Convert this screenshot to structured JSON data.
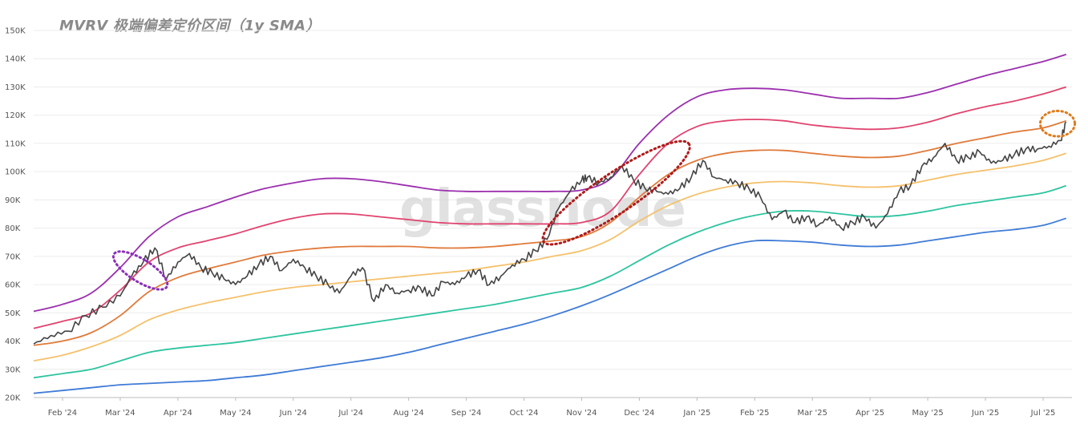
{
  "chart_data": {
    "type": "line",
    "title": "MVRV 极端偏差定价区间（1y SMA）",
    "watermark": "glassnode",
    "xlabel": "",
    "ylabel": "",
    "ylim": [
      20000,
      150000
    ],
    "y_ticks": [
      20000,
      30000,
      40000,
      50000,
      60000,
      70000,
      80000,
      90000,
      100000,
      110000,
      120000,
      130000,
      140000,
      150000
    ],
    "y_tick_labels": [
      "20K",
      "30K",
      "40K",
      "50K",
      "60K",
      "70K",
      "80K",
      "90K",
      "100K",
      "110K",
      "120K",
      "130K",
      "140K",
      "150K"
    ],
    "x_tick_labels": [
      "Feb '24",
      "Mar '24",
      "Apr '24",
      "May '24",
      "Jun '24",
      "Jul '24",
      "Aug '24",
      "Sep '24",
      "Oct '24",
      "Nov '24",
      "Dec '24",
      "Jan '25",
      "Feb '25",
      "Mar '25",
      "Apr '25",
      "May '25",
      "Jun '25",
      "Jul '25"
    ],
    "x_tick_positions": [
      0.5,
      1.5,
      2.5,
      3.5,
      4.5,
      5.5,
      6.5,
      7.5,
      8.5,
      9.5,
      10.5,
      11.5,
      12.5,
      13.5,
      14.5,
      15.5,
      16.5,
      17.5
    ],
    "grid": true,
    "x": [
      0,
      0.5,
      1,
      1.5,
      2,
      2.5,
      3,
      3.5,
      4,
      4.5,
      5,
      5.5,
      6,
      6.5,
      7,
      7.5,
      8,
      8.5,
      9,
      9.5,
      10,
      10.5,
      11,
      11.5,
      12,
      12.5,
      13,
      13.5,
      14,
      14.5,
      15,
      15.5,
      16,
      16.5,
      17,
      17.5,
      17.9
    ],
    "series": [
      {
        "color": "#9b2fae",
        "values": [
          50500,
          53000,
          57000,
          66000,
          77000,
          84000,
          87500,
          91000,
          94000,
          96000,
          97500,
          97500,
          96500,
          95000,
          93500,
          93000,
          93000,
          93000,
          93000,
          93500,
          97500,
          110000,
          120000,
          126500,
          129000,
          129500,
          129000,
          127500,
          126000,
          126000,
          126000,
          128000,
          131000,
          134000,
          136500,
          139000,
          141500
        ]
      },
      {
        "color": "#e0436e",
        "values": [
          44500,
          47000,
          50000,
          58000,
          68000,
          73000,
          75500,
          78000,
          81000,
          83500,
          85000,
          85000,
          84000,
          83000,
          82000,
          81500,
          81500,
          81500,
          81500,
          82000,
          86000,
          99000,
          110000,
          116000,
          118000,
          118500,
          118000,
          116500,
          115500,
          115000,
          115500,
          117500,
          120500,
          123000,
          125000,
          127500,
          130000
        ]
      },
      {
        "color": "#e07a3a",
        "values": [
          38500,
          40000,
          43000,
          49000,
          57500,
          62500,
          65500,
          68000,
          70500,
          72000,
          73000,
          73500,
          73500,
          73500,
          73000,
          73000,
          73500,
          74500,
          75500,
          77000,
          82000,
          91000,
          99000,
          104000,
          106500,
          107500,
          107500,
          106500,
          105500,
          105000,
          105500,
          107500,
          110000,
          112000,
          114000,
          115500,
          118000
        ]
      },
      {
        "color": "#f5c16c",
        "values": [
          33000,
          35000,
          38000,
          42000,
          47500,
          51000,
          53500,
          55500,
          57500,
          59000,
          60000,
          61000,
          62000,
          63000,
          64000,
          65000,
          66500,
          68000,
          70000,
          72000,
          76000,
          82500,
          88000,
          92000,
          94500,
          96000,
          96500,
          96000,
          95000,
          94500,
          95000,
          97000,
          99000,
          100500,
          102000,
          104000,
          106500
        ]
      },
      {
        "color": "#2ec4a0",
        "values": [
          27000,
          28500,
          30000,
          33000,
          36000,
          37500,
          38500,
          39500,
          41000,
          42500,
          44000,
          45500,
          47000,
          48500,
          50000,
          51500,
          53000,
          55000,
          57000,
          59000,
          63000,
          68500,
          74000,
          78500,
          82000,
          84500,
          86000,
          86000,
          85000,
          84000,
          84500,
          86000,
          88000,
          89500,
          91000,
          92500,
          95000
        ]
      },
      {
        "color": "#3f7bd6",
        "values": [
          21500,
          22500,
          23500,
          24500,
          25000,
          25500,
          26000,
          27000,
          28000,
          29500,
          31000,
          32500,
          34000,
          36000,
          38500,
          41000,
          43500,
          46000,
          49000,
          52500,
          56500,
          61000,
          65500,
          70000,
          73500,
          75500,
          75500,
          75000,
          74000,
          73500,
          74000,
          75500,
          77000,
          78500,
          79500,
          81000,
          83500
        ]
      },
      {
        "color": "#444444",
        "x": [
          0,
          0.3,
          0.6,
          0.9,
          1.2,
          1.5,
          1.7,
          1.9,
          2.1,
          2.3,
          2.5,
          2.7,
          2.9,
          3.1,
          3.3,
          3.5,
          3.7,
          3.9,
          4.1,
          4.3,
          4.5,
          4.7,
          4.9,
          5.1,
          5.3,
          5.5,
          5.7,
          5.9,
          6.1,
          6.3,
          6.5,
          6.7,
          6.9,
          7.1,
          7.3,
          7.5,
          7.7,
          7.9,
          8.1,
          8.3,
          8.5,
          8.7,
          8.9,
          9.1,
          9.3,
          9.5,
          9.6,
          9.8,
          10.0,
          10.2,
          10.4,
          10.6,
          10.8,
          11.0,
          11.2,
          11.4,
          11.6,
          11.8,
          12.0,
          12.2,
          12.4,
          12.6,
          12.8,
          13.0,
          13.2,
          13.4,
          13.6,
          13.8,
          14.0,
          14.2,
          14.4,
          14.6,
          14.8,
          15.0,
          15.2,
          15.4,
          15.6,
          15.8,
          16.0,
          16.2,
          16.4,
          16.6,
          16.8,
          17.0,
          17.2,
          17.4,
          17.6,
          17.8,
          17.9
        ],
        "values": [
          39000,
          42000,
          43500,
          49000,
          52000,
          56000,
          63000,
          68000,
          73000,
          62000,
          68000,
          71000,
          66000,
          64000,
          62000,
          60000,
          63000,
          67000,
          70000,
          65000,
          69000,
          66000,
          63000,
          60000,
          57000,
          63000,
          66000,
          54000,
          60000,
          57000,
          58000,
          59000,
          56000,
          61000,
          60000,
          63000,
          65000,
          60000,
          63000,
          67000,
          69000,
          72000,
          76000,
          87000,
          93000,
          97000,
          98000,
          96000,
          98000,
          102000,
          97000,
          94000,
          93000,
          92000,
          94000,
          98000,
          104000,
          98000,
          97000,
          96000,
          94000,
          91000,
          83000,
          86000,
          82000,
          84000,
          81000,
          84000,
          80000,
          82000,
          84000,
          80000,
          85000,
          93000,
          95000,
          102000,
          105000,
          110000,
          104000,
          105000,
          107000,
          103000,
          104000,
          106000,
          108000,
          108000,
          109000,
          111000,
          117500
        ]
      }
    ],
    "annotations": [
      {
        "type": "dotted-ellipse",
        "color": "#8a2fb8",
        "x": 1.85,
        "y": 65000,
        "rx_units": 0.45,
        "ry_units": 11000
      },
      {
        "type": "dotted-ellipse",
        "color": "#b01a1a",
        "x": 10.1,
        "y": 92500,
        "rx_units": 1.55,
        "ry_units": 6500
      },
      {
        "type": "dotted-ellipse",
        "color": "#e07a1a",
        "x": 17.75,
        "y": 117000,
        "rx_units": 0.3,
        "ry_units": 4500
      }
    ]
  }
}
